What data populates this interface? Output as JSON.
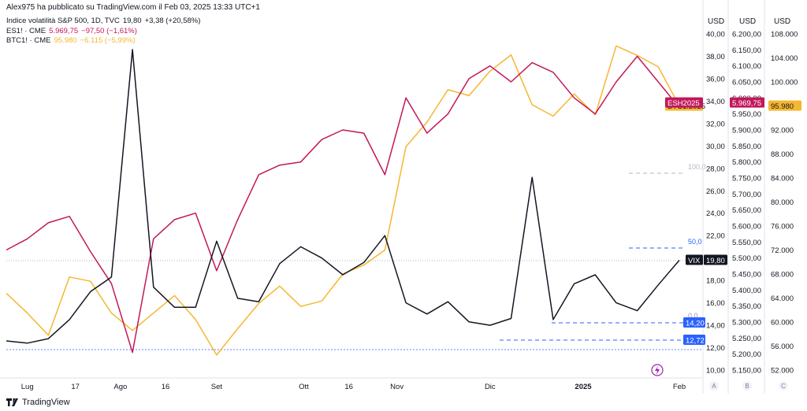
{
  "header": {
    "publisher": "Alex975 ha pubblicato su TradingView.com il Feb 03, 2025 13:33 UTC+1"
  },
  "legend": [
    {
      "name": "Indice volatilità S&P 500, 1D, TVC",
      "last": "19,80",
      "change": "+3,38 (+20,58%)",
      "color": "#131722"
    },
    {
      "name": "ES1! · CME",
      "last": "5.969,75",
      "change": "−97,50 (−1,61%)",
      "color": "#c2185b"
    },
    {
      "name": "BTC1! · CME",
      "last": "95.980",
      "change": "−6.115 (−5,99%)",
      "color": "#f5b731"
    }
  ],
  "axes": {
    "headers": [
      "USD",
      "USD",
      "USD"
    ],
    "bottom_letters": [
      "A",
      "B",
      "C"
    ],
    "vix_ticks": [
      "40,00",
      "38,00",
      "36,00",
      "34,00",
      "32,00",
      "30,00",
      "28,00",
      "26,00",
      "24,00",
      "22,00",
      "20,00",
      "18,00",
      "16,00",
      "14,00",
      "12,00",
      "10,00"
    ],
    "es_ticks": [
      "6.200,00",
      "6.150,00",
      "6.100,00",
      "6.050,00",
      "6.000,00",
      "5.950,00",
      "5.900,00",
      "5.850,00",
      "5.800,00",
      "5.750,00",
      "5.700,00",
      "5.650,00",
      "5.600,00",
      "5.550,00",
      "5.500,00",
      "5.450,00",
      "5.400,00",
      "5.350,00",
      "5.300,00",
      "5.250,00",
      "5.200,00",
      "5.150,00"
    ],
    "btc_ticks": [
      "108.000",
      "104.000",
      "100.000",
      "96.000",
      "92.000",
      "88.000",
      "84.000",
      "80.000",
      "76.000",
      "72.000",
      "68.000",
      "64.000",
      "60.000",
      "56.000",
      "52.000"
    ],
    "x_ticks": [
      "Lug",
      "17",
      "Ago",
      "16",
      "Set",
      "Ott",
      "16",
      "Nov",
      "Dic",
      "2025",
      "Feb"
    ]
  },
  "badges": {
    "esh": "ESH2025",
    "es_val": "5.969,75",
    "btc_sym": "BTC1!2025",
    "btc_val": "95.980",
    "vix_sym": "VIX",
    "vix_val": "19,80",
    "lvl1": "14,20",
    "lvl2": "12,72"
  },
  "fib_labels": [
    "100,0",
    "50,0",
    "0,0"
  ],
  "footer": {
    "brand": "TradingView"
  },
  "chart_data": {
    "type": "line",
    "x": [
      "2024-06-24",
      "2024-07-01",
      "2024-07-08",
      "2024-07-15",
      "2024-07-22",
      "2024-07-29",
      "2024-08-05",
      "2024-08-12",
      "2024-08-19",
      "2024-08-26",
      "2024-09-02",
      "2024-09-09",
      "2024-09-16",
      "2024-09-23",
      "2024-09-30",
      "2024-10-07",
      "2024-10-14",
      "2024-10-21",
      "2024-10-28",
      "2024-11-04",
      "2024-11-11",
      "2024-11-18",
      "2024-11-25",
      "2024-12-02",
      "2024-12-09",
      "2024-12-16",
      "2024-12-23",
      "2024-12-30",
      "2025-01-06",
      "2025-01-13",
      "2025-01-20",
      "2025-01-27",
      "2025-02-03"
    ],
    "series": [
      {
        "name": "Indice volatilità S&P 500",
        "axis": "A",
        "color": "#131722",
        "values": [
          12.6,
          12.4,
          12.8,
          14.5,
          17.0,
          18.3,
          38.6,
          17.4,
          15.6,
          15.6,
          21.5,
          16.4,
          16.1,
          19.5,
          21.0,
          20.0,
          18.5,
          19.6,
          22.0,
          16.0,
          15.0,
          16.1,
          14.3,
          14.0,
          14.6,
          27.2,
          14.5,
          17.7,
          18.5,
          16.0,
          15.3,
          17.6,
          19.8
        ]
      },
      {
        "name": "ES1! · CME",
        "axis": "B",
        "color": "#c2185b",
        "values": [
          5525,
          5560,
          5610,
          5630,
          5520,
          5420,
          5205,
          5560,
          5620,
          5640,
          5460,
          5620,
          5760,
          5790,
          5800,
          5870,
          5900,
          5890,
          5760,
          6000,
          5890,
          5950,
          6060,
          6100,
          6050,
          6110,
          6080,
          6000,
          5950,
          6050,
          6130,
          6050,
          5969.75
        ]
      },
      {
        "name": "BTC1! · CME",
        "axis": "C",
        "color": "#f5b731",
        "values": [
          64800,
          61500,
          57800,
          67500,
          66800,
          61500,
          58600,
          61500,
          64400,
          60400,
          54500,
          58900,
          63100,
          66000,
          62600,
          63500,
          68000,
          69500,
          72000,
          89200,
          93300,
          98700,
          97700,
          101800,
          104500,
          96200,
          94300,
          98000,
          94500,
          106000,
          104400,
          102500,
          95980
        ]
      }
    ],
    "axis_ranges": {
      "A": [
        10,
        40
      ],
      "B": [
        5150,
        6200
      ],
      "C": [
        52000,
        108000
      ]
    },
    "grid": false
  }
}
